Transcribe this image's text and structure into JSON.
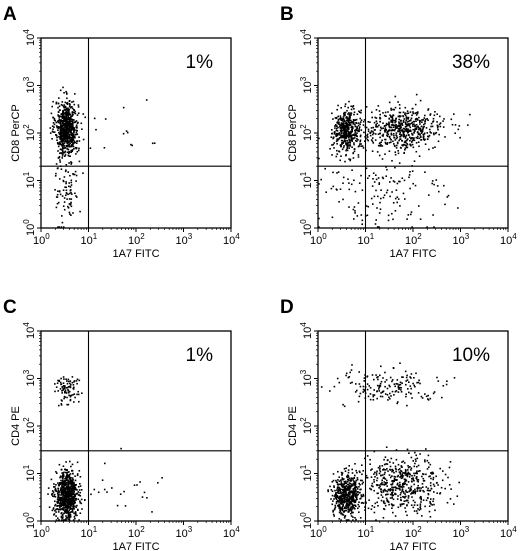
{
  "figure": {
    "tick_base": "10",
    "x_tick_exponents": [
      "0",
      "1",
      "2",
      "3",
      "4"
    ],
    "y_tick_exponents": [
      "0",
      "1",
      "2",
      "3",
      "4"
    ]
  },
  "chart_data": [
    {
      "type": "scatter",
      "panel": "A",
      "xlabel": "1A7 FITC",
      "ylabel": "CD8 PerCP",
      "x_scale": "log",
      "y_scale": "log",
      "xlim": [
        1,
        10000
      ],
      "ylim": [
        1,
        10000
      ],
      "gate_x": 10,
      "gate_y": 20,
      "annotation": "1%",
      "clusters": [
        {
          "x_center": 3.5,
          "y_center": 130,
          "x_spread_decades": 0.12,
          "y_spread_decades": 0.28,
          "count": 650
        },
        {
          "x_center": 3.5,
          "y_center": 10,
          "x_spread_decades": 0.12,
          "y_spread_decades": 0.55,
          "count": 110
        },
        {
          "x_center": 50,
          "y_center": 120,
          "x_spread_decades": 0.6,
          "y_spread_decades": 0.3,
          "count": 14
        }
      ]
    },
    {
      "type": "scatter",
      "panel": "B",
      "xlabel": "1A7 FITC",
      "ylabel": "CD8 PerCP",
      "x_scale": "log",
      "y_scale": "log",
      "xlim": [
        1,
        10000
      ],
      "ylim": [
        1,
        10000
      ],
      "gate_x": 10,
      "gate_y": 20,
      "annotation": "38%",
      "clusters": [
        {
          "x_center": 4,
          "y_center": 110,
          "x_spread_decades": 0.14,
          "y_spread_decades": 0.22,
          "count": 420
        },
        {
          "x_center": 60,
          "y_center": 120,
          "x_spread_decades": 0.45,
          "y_spread_decades": 0.22,
          "count": 560
        },
        {
          "x_center": 20,
          "y_center": 5,
          "x_spread_decades": 0.7,
          "y_spread_decades": 0.5,
          "count": 150
        }
      ]
    },
    {
      "type": "scatter",
      "panel": "C",
      "xlabel": "1A7 FITC",
      "ylabel": "CD4 PE",
      "x_scale": "log",
      "y_scale": "log",
      "xlim": [
        1,
        10000
      ],
      "ylim": [
        1,
        10000
      ],
      "gate_x": 10,
      "gate_y": 30,
      "annotation": "1%",
      "clusters": [
        {
          "x_center": 3.5,
          "y_center": 3.5,
          "x_spread_decades": 0.12,
          "y_spread_decades": 0.25,
          "count": 750
        },
        {
          "x_center": 3.5,
          "y_center": 600,
          "x_spread_decades": 0.12,
          "y_spread_decades": 0.18,
          "count": 90
        },
        {
          "x_center": 40,
          "y_center": 5,
          "x_spread_decades": 0.55,
          "y_spread_decades": 0.3,
          "count": 25
        }
      ]
    },
    {
      "type": "scatter",
      "panel": "D",
      "xlabel": "1A7 FITC",
      "ylabel": "CD4 PE",
      "x_scale": "log",
      "y_scale": "log",
      "xlim": [
        1,
        10000
      ],
      "ylim": [
        1,
        10000
      ],
      "gate_x": 10,
      "gate_y": 30,
      "annotation": "10%",
      "clusters": [
        {
          "x_center": 4,
          "y_center": 3.5,
          "x_spread_decades": 0.14,
          "y_spread_decades": 0.22,
          "count": 520
        },
        {
          "x_center": 60,
          "y_center": 6,
          "x_spread_decades": 0.45,
          "y_spread_decades": 0.28,
          "count": 520
        },
        {
          "x_center": 30,
          "y_center": 700,
          "x_spread_decades": 0.6,
          "y_spread_decades": 0.16,
          "count": 170
        }
      ]
    }
  ]
}
